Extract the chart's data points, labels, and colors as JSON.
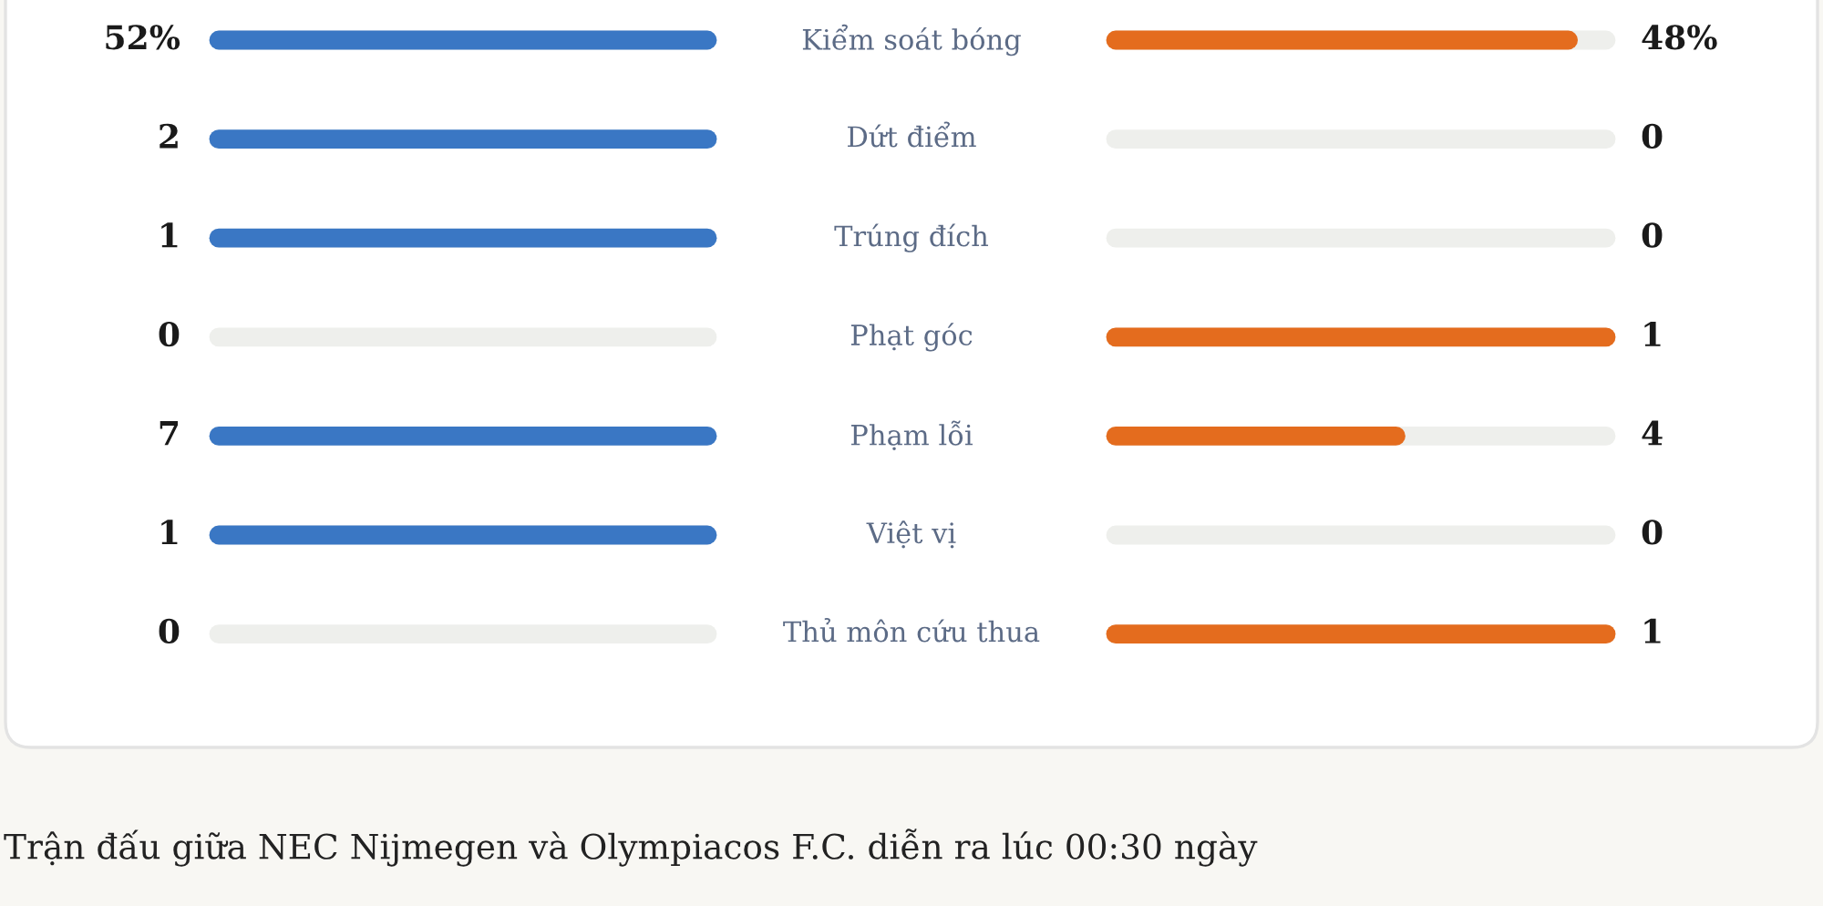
{
  "chart_data": {
    "type": "other",
    "categories": [
      "Kiểm soát bóng",
      "Dứt điểm",
      "Trúng đích",
      "Phạt góc",
      "Phạm lỗi",
      "Việt vị",
      "Thủ môn cứu thua"
    ],
    "series": [
      {
        "color": "#3a77c4",
        "values": [
          52,
          2,
          1,
          0,
          7,
          1,
          0
        ],
        "value_labels": [
          "52%",
          "2",
          "1",
          "0",
          "7",
          "1",
          "0"
        ]
      },
      {
        "color": "#e46c1e",
        "values": [
          48,
          0,
          0,
          1,
          4,
          0,
          1
        ],
        "value_labels": [
          "48%",
          "0",
          "0",
          "1",
          "4",
          "0",
          "1"
        ]
      }
    ],
    "annotations": [
      "Trận đấu giữa NEC Nijmegen và Olympiacos F.C. diễn ra lúc 00:30 ngày"
    ]
  }
}
